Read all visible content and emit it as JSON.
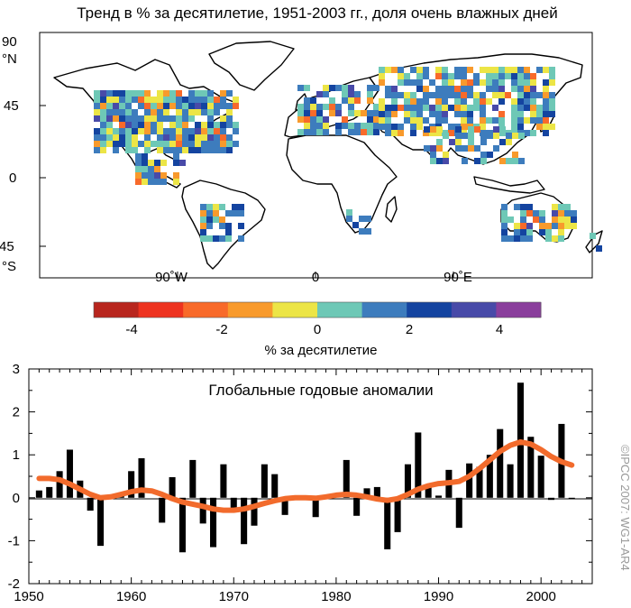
{
  "title": "Тренд в % за десятилетие, 1951-2003 гг., доля очень влажных дней",
  "map": {
    "lat_labels": [
      "90",
      "°N",
      "45",
      "0",
      "45",
      "°S"
    ],
    "lon_labels": [
      "90˚W",
      "0",
      "90˚E"
    ]
  },
  "colorbar": {
    "label": "% за десятилетие",
    "ticks": [
      "-4",
      "-2",
      "0",
      "2",
      "4"
    ],
    "colors": [
      "#b8261e",
      "#ee3320",
      "#f86a2a",
      "#f89a2c",
      "#ece546",
      "#6ec8b6",
      "#3d7cbd",
      "#1444a0",
      "#484aa8",
      "#8a3e9c"
    ]
  },
  "credit": "©IPCC  2007: WG1-AR4",
  "chart_data": {
    "type": "bar",
    "title": "Глобальные годовые аномалии",
    "xlabel": "",
    "ylabel": "",
    "xlim": [
      1950,
      2005
    ],
    "ylim": [
      -2,
      3
    ],
    "x_ticks": [
      "1950",
      "1960",
      "1970",
      "1980",
      "1990",
      "2000"
    ],
    "y_ticks": [
      "-2",
      "-1",
      "0",
      "1",
      "2",
      "3"
    ],
    "bar_color": "#000000",
    "smooth_color": "#f26b2c",
    "years": [
      1951,
      1952,
      1953,
      1954,
      1955,
      1956,
      1957,
      1958,
      1959,
      1960,
      1961,
      1962,
      1963,
      1964,
      1965,
      1966,
      1967,
      1968,
      1969,
      1970,
      1971,
      1972,
      1973,
      1974,
      1975,
      1976,
      1977,
      1978,
      1979,
      1980,
      1981,
      1982,
      1983,
      1984,
      1985,
      1986,
      1987,
      1988,
      1989,
      1990,
      1991,
      1992,
      1993,
      1994,
      1995,
      1996,
      1997,
      1998,
      1999,
      2000,
      2001,
      2002,
      2003
    ],
    "values": [
      0.17,
      0.25,
      0.62,
      1.12,
      0.4,
      -0.3,
      -1.12,
      0.0,
      0.1,
      0.62,
      0.92,
      0.0,
      -0.58,
      0.48,
      -1.27,
      0.88,
      -0.6,
      -1.15,
      0.78,
      -0.25,
      -1.08,
      -0.65,
      0.78,
      0.55,
      -0.4,
      0.0,
      0.0,
      -0.45,
      0.0,
      0.0,
      0.88,
      -0.42,
      0.22,
      0.25,
      -1.2,
      -0.8,
      0.78,
      1.52,
      0.25,
      0.05,
      0.65,
      -0.7,
      0.8,
      0.72,
      1.0,
      1.6,
      0.78,
      2.68,
      1.42,
      0.98,
      -0.05,
      1.72,
      -0.02
    ],
    "smoothed": [
      0.45,
      0.45,
      0.42,
      0.32,
      0.2,
      0.08,
      0.0,
      0.02,
      0.08,
      0.14,
      0.18,
      0.16,
      0.08,
      -0.02,
      -0.1,
      -0.15,
      -0.2,
      -0.26,
      -0.29,
      -0.29,
      -0.26,
      -0.2,
      -0.13,
      -0.07,
      -0.02,
      0.0,
      0.0,
      -0.01,
      0.02,
      0.06,
      0.08,
      0.06,
      0.02,
      -0.03,
      -0.06,
      -0.02,
      0.08,
      0.2,
      0.28,
      0.33,
      0.35,
      0.38,
      0.5,
      0.68,
      0.88,
      1.08,
      1.22,
      1.3,
      1.25,
      1.12,
      0.96,
      0.84,
      0.76
    ]
  }
}
